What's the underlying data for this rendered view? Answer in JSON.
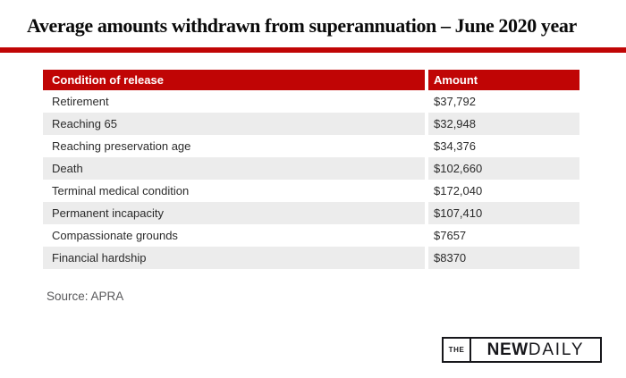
{
  "title": "Average amounts withdrawn from superannuation – June 2020 year",
  "accent_color": "#c00505",
  "table": {
    "columns": [
      "Condition of release",
      "Amount"
    ],
    "rows": [
      {
        "condition": "Retirement",
        "amount": "$37,792"
      },
      {
        "condition": "Reaching 65",
        "amount": "$32,948"
      },
      {
        "condition": "Reaching preservation age",
        "amount": "$34,376"
      },
      {
        "condition": "Death",
        "amount": "$102,660"
      },
      {
        "condition": "Terminal medical condition",
        "amount": "$172,040"
      },
      {
        "condition": "Permanent incapacity",
        "amount": "$107,410"
      },
      {
        "condition": "Compassionate grounds",
        "amount": "$7657"
      },
      {
        "condition": "Financial hardship",
        "amount": "$8370"
      }
    ]
  },
  "source": "Source: APRA",
  "logo": {
    "the": "THE",
    "new": "NEW",
    "daily": "DAILY"
  },
  "chart_data": {
    "type": "table",
    "title": "Average amounts withdrawn from superannuation – June 2020 year",
    "columns": [
      "Condition of release",
      "Amount"
    ],
    "categories": [
      "Retirement",
      "Reaching 65",
      "Reaching preservation age",
      "Death",
      "Terminal medical condition",
      "Permanent incapacity",
      "Compassionate grounds",
      "Financial hardship"
    ],
    "values": [
      37792,
      32948,
      34376,
      102660,
      172040,
      107410,
      7657,
      8370
    ],
    "source": "Source: APRA"
  }
}
